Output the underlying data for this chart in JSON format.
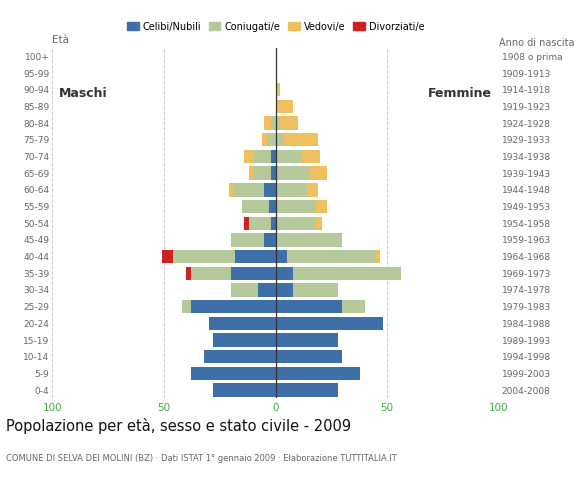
{
  "title": "Popolazione per età, sesso e stato civile - 2009",
  "subtitle": "COMUNE DI SELVA DEI MOLINI (BZ) · Dati ISTAT 1° gennaio 2009 · Elaborazione TUTTITALIA.IT",
  "ylabel_left": "Età",
  "ylabel_right": "Anno di nascita",
  "label_maschi": "Maschi",
  "label_femmine": "Femmine",
  "legend_labels": [
    "Celibi/Nubili",
    "Coniugati/e",
    "Vedovi/e",
    "Divorziati/e"
  ],
  "legend_colors": [
    "#3e6fa8",
    "#b5c99a",
    "#f0c060",
    "#cc2222"
  ],
  "age_groups": [
    "100+",
    "95-99",
    "90-94",
    "85-89",
    "80-84",
    "75-79",
    "70-74",
    "65-69",
    "60-64",
    "55-59",
    "50-54",
    "45-49",
    "40-44",
    "35-39",
    "30-34",
    "25-29",
    "20-24",
    "15-19",
    "10-14",
    "5-9",
    "0-4"
  ],
  "birth_years": [
    "1908 o prima",
    "1909-1913",
    "1914-1918",
    "1919-1923",
    "1924-1928",
    "1929-1933",
    "1934-1938",
    "1939-1943",
    "1944-1948",
    "1949-1953",
    "1954-1958",
    "1959-1963",
    "1964-1968",
    "1969-1973",
    "1974-1978",
    "1979-1983",
    "1984-1988",
    "1989-1993",
    "1994-1998",
    "1999-2003",
    "2004-2008"
  ],
  "males_celibi": [
    0,
    0,
    0,
    0,
    0,
    0,
    2,
    2,
    5,
    3,
    2,
    5,
    18,
    20,
    8,
    38,
    30,
    28,
    32,
    38,
    28
  ],
  "males_coniugati": [
    0,
    0,
    0,
    0,
    2,
    4,
    8,
    8,
    14,
    12,
    10,
    15,
    28,
    18,
    12,
    4,
    0,
    0,
    0,
    0,
    0
  ],
  "males_vedovi": [
    0,
    0,
    0,
    0,
    3,
    2,
    4,
    2,
    2,
    0,
    0,
    0,
    0,
    0,
    0,
    0,
    0,
    0,
    0,
    0,
    0
  ],
  "males_divorziati": [
    0,
    0,
    0,
    0,
    0,
    0,
    0,
    0,
    0,
    0,
    2,
    0,
    5,
    2,
    0,
    0,
    0,
    0,
    0,
    0,
    0
  ],
  "females_nubili": [
    0,
    0,
    0,
    0,
    0,
    0,
    0,
    0,
    0,
    0,
    0,
    0,
    5,
    8,
    8,
    30,
    48,
    28,
    30,
    38,
    28
  ],
  "females_coniugate": [
    0,
    0,
    0,
    0,
    2,
    4,
    12,
    15,
    14,
    18,
    18,
    30,
    40,
    48,
    20,
    10,
    0,
    0,
    0,
    0,
    0
  ],
  "females_vedove": [
    0,
    0,
    2,
    8,
    8,
    15,
    8,
    8,
    5,
    5,
    3,
    0,
    2,
    0,
    0,
    0,
    0,
    0,
    0,
    0,
    0
  ],
  "females_divorziate": [
    0,
    0,
    0,
    0,
    0,
    0,
    0,
    0,
    0,
    0,
    0,
    0,
    0,
    0,
    0,
    0,
    0,
    0,
    0,
    0,
    0
  ],
  "xlim": 100,
  "bg_color": "#ffffff",
  "grid_color": "#cccccc",
  "bar_height": 0.8,
  "color_celibi": "#3e6fa8",
  "color_coniugati": "#b5c99a",
  "color_vedovi": "#f0c060",
  "color_divorziati": "#cc2222",
  "axis_tick_color": "#44aa44",
  "text_color": "#333333",
  "label_color": "#666666"
}
